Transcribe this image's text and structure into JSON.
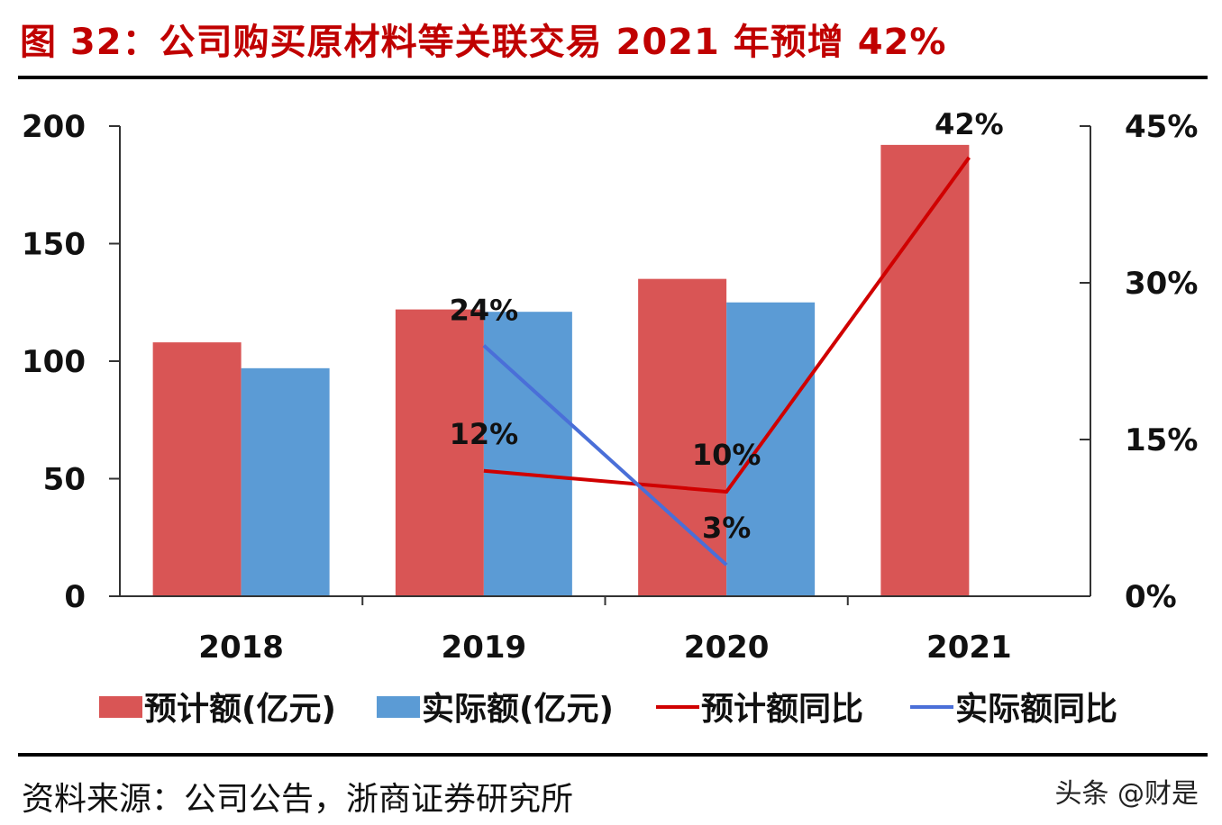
{
  "title": "图 32：公司购买原材料等关联交易 2021 年预增 42%",
  "source": "资料来源：公司公告，浙商证券研究所",
  "watermark": "头条 @财是",
  "chart_data": {
    "type": "bar",
    "title": "",
    "categories": [
      "2018",
      "2019",
      "2020",
      "2021"
    ],
    "y_left": {
      "lim": [
        0,
        200
      ],
      "ticks": [
        "0",
        "50",
        "100",
        "150",
        "200"
      ],
      "tick_values": [
        0,
        50,
        100,
        150,
        200
      ]
    },
    "y_right": {
      "lim": [
        0,
        45
      ],
      "ticks": [
        "0%",
        "15%",
        "30%",
        "45%"
      ],
      "tick_values": [
        0,
        15,
        30,
        45
      ]
    },
    "grid": false,
    "legend_position": "bottom",
    "series": [
      {
        "name": "预计额(亿元)",
        "type": "bar",
        "axis": "left",
        "color": "#d95555",
        "values": [
          108,
          122,
          135,
          192
        ]
      },
      {
        "name": "实际额(亿元)",
        "type": "bar",
        "axis": "left",
        "color": "#5b9bd5",
        "values": [
          97,
          121,
          125,
          null
        ]
      },
      {
        "name": "预计额同比",
        "type": "line",
        "axis": "right",
        "color": "#d00000",
        "values": [
          null,
          12,
          10,
          42
        ],
        "labels": [
          "",
          "12%",
          "10%",
          "42%"
        ]
      },
      {
        "name": "实际额同比",
        "type": "line",
        "axis": "right",
        "color": "#4a6fd8",
        "values": [
          null,
          24,
          3,
          null
        ],
        "labels": [
          "",
          "24%",
          "3%",
          ""
        ]
      }
    ]
  }
}
